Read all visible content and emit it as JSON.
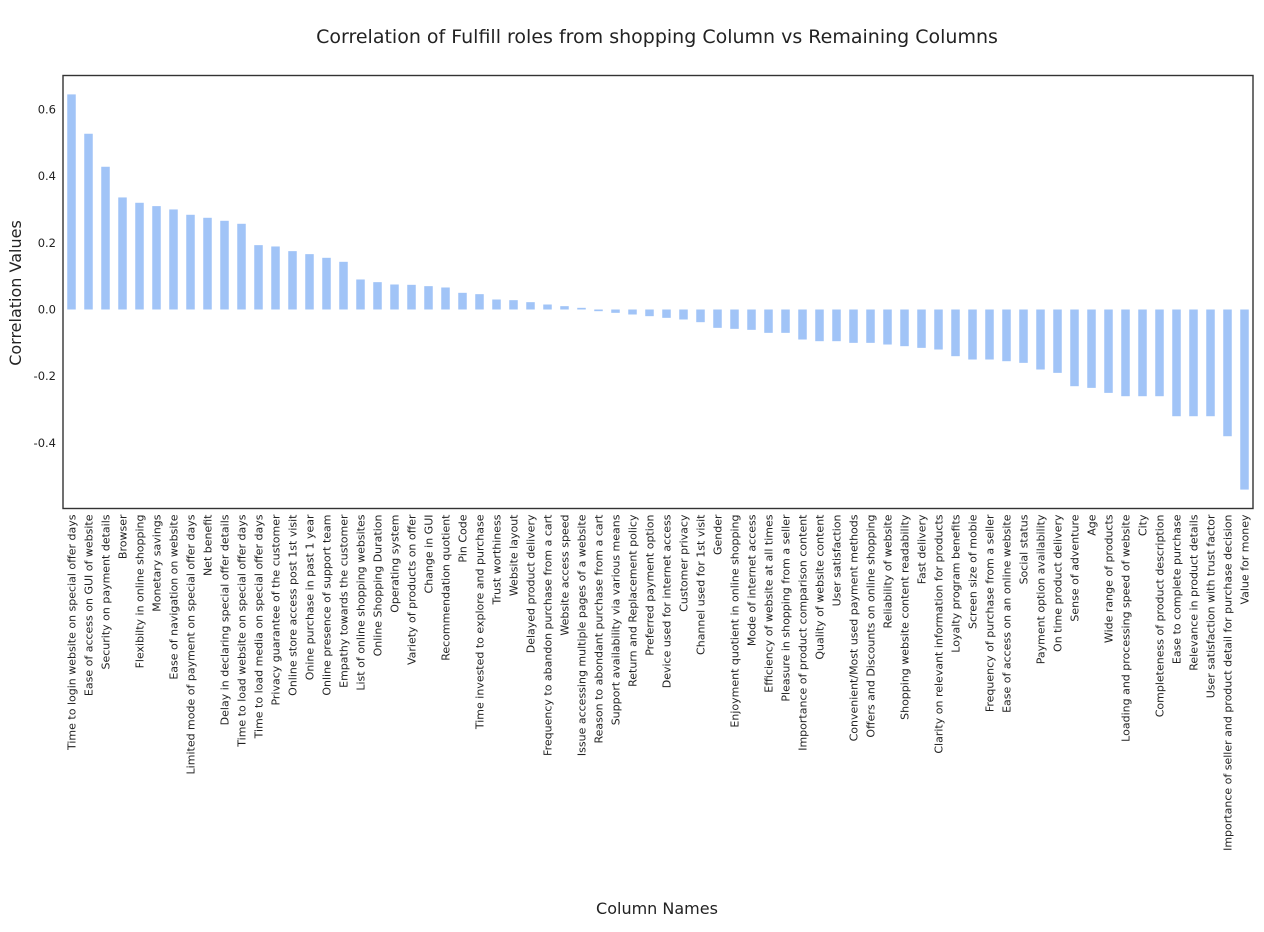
{
  "chart_data": {
    "type": "bar",
    "title": "Correlation of Fulfill roles from shopping Column vs Remaining Columns",
    "xlabel": "Column Names",
    "ylabel": "Correlation Values",
    "ylim": [
      -0.6,
      0.7
    ],
    "yticks": [
      -0.4,
      -0.2,
      0.0,
      0.2,
      0.4,
      0.6
    ],
    "ytick_labels": [
      "-0.4",
      "-0.2",
      "0.0",
      "0.2",
      "0.4",
      "0.6"
    ],
    "grid": false,
    "bar_color": "#a1c4f7",
    "categories": [
      "Time to login website on special offer days",
      "Ease of access on GUI of website",
      "Security on payment details",
      "Browser",
      "Flexibilty in online shopping",
      "Monetary savings",
      "Ease of navigation on website",
      "Limited mode of payment on special offer days",
      "Net benefit",
      "Delay in declaring special offer details",
      "Time to load website on special offer days",
      "Time to load media on special offer days",
      "Privacy guarantee of the customer",
      "Online store access post 1st visit",
      "Onine purchase in past 1 year",
      "Online presence of support team",
      "Empathy towards the customer",
      "List of online shopping websites",
      "Online Shopping Duration",
      "Operating system",
      "Variety of products on offer",
      "Change in GUI",
      "Recommendation quotient",
      "Pin Code",
      "Time invested to explore and purchase",
      "Trust worthiness",
      "Website layout",
      "Delayed product delivery",
      "Frequency to abandon purchase from a cart",
      "Website access speed",
      "Issue accessing multiple pages of a website",
      "Reason to abondant purchase from a cart",
      "Support availability via various means",
      "Return and Replacement policy",
      "Preferred payment option",
      "Device used for internet access",
      "Customer privacy",
      "Channel used for 1st visit",
      "Gender",
      "Enjoyment quotient in online shopping",
      "Mode of internet access",
      "Efficiency of website at all times",
      "Pleasure in shopping from a seller",
      "Importance of product comparison content",
      "Quality of website content",
      "User satisfaction",
      "Convenient/Most used payment methods",
      "Offers and Discounts on online shopping",
      "Reliability of website",
      "Shopping website content readability",
      "Fast delivery",
      "Clarity on relevant information for products",
      "Loyalty program benefits",
      "Screen size of mobie",
      "Frequency of purchase from a seller",
      "Ease of access on an online website",
      "Social status",
      "Payment option availability",
      "On time product delivery",
      "Sense of adventure",
      "Age",
      "Wide range of products",
      "Loading and processing speed of website",
      "City",
      "Completeness of product description",
      "Ease to complete purchase",
      "Relevance in product details",
      "User satisfaction with trust factor",
      "Importance of seller and product detail for purchase decision",
      "Value for money"
    ],
    "values": [
      0.645,
      0.527,
      0.428,
      0.336,
      0.32,
      0.31,
      0.3,
      0.284,
      0.275,
      0.266,
      0.257,
      0.193,
      0.189,
      0.175,
      0.166,
      0.155,
      0.143,
      0.09,
      0.082,
      0.075,
      0.074,
      0.07,
      0.066,
      0.05,
      0.046,
      0.03,
      0.028,
      0.022,
      0.015,
      0.01,
      0.005,
      -0.005,
      -0.01,
      -0.015,
      -0.02,
      -0.025,
      -0.03,
      -0.038,
      -0.055,
      -0.058,
      -0.061,
      -0.07,
      -0.07,
      -0.09,
      -0.095,
      -0.095,
      -0.1,
      -0.1,
      -0.105,
      -0.11,
      -0.115,
      -0.12,
      -0.14,
      -0.15,
      -0.15,
      -0.155,
      -0.16,
      -0.18,
      -0.19,
      -0.23,
      -0.235,
      -0.25,
      -0.26,
      -0.26,
      -0.26,
      -0.32,
      -0.32,
      -0.32,
      -0.38,
      -0.54
    ]
  }
}
